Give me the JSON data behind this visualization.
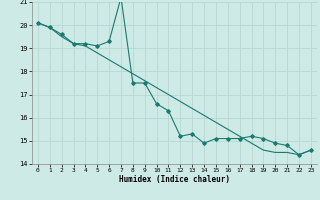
{
  "xlabel": "Humidex (Indice chaleur)",
  "ylabel": "",
  "background_color": "#ceeae6",
  "grid_color": "#b8d8d4",
  "line_color": "#1a7a6e",
  "xlim": [
    -0.5,
    23.5
  ],
  "ylim": [
    14,
    21
  ],
  "xticks": [
    0,
    1,
    2,
    3,
    4,
    5,
    6,
    7,
    8,
    9,
    10,
    11,
    12,
    13,
    14,
    15,
    16,
    17,
    18,
    19,
    20,
    21,
    22,
    23
  ],
  "yticks": [
    14,
    15,
    16,
    17,
    18,
    19,
    20,
    21
  ],
  "series1_x": [
    0,
    1,
    2,
    3,
    4,
    5,
    6,
    7,
    8,
    9,
    10,
    11,
    12,
    13,
    14,
    15,
    16,
    17,
    18,
    19,
    20,
    21,
    22,
    23
  ],
  "series1_y": [
    20.1,
    19.9,
    19.6,
    19.2,
    19.2,
    19.1,
    19.3,
    21.2,
    17.5,
    17.5,
    16.6,
    16.3,
    15.2,
    15.3,
    14.9,
    15.1,
    15.1,
    15.1,
    15.2,
    15.1,
    14.9,
    14.8,
    14.4,
    14.6
  ],
  "series2_x": [
    0,
    1,
    2,
    3,
    4,
    5,
    6,
    7,
    8,
    9,
    10,
    11,
    12,
    13,
    14,
    15,
    16,
    17,
    18,
    19,
    20,
    21,
    22,
    23
  ],
  "series2_y": [
    20.1,
    19.9,
    19.5,
    19.2,
    19.1,
    18.8,
    18.5,
    18.2,
    17.9,
    17.6,
    17.3,
    17.0,
    16.7,
    16.4,
    16.1,
    15.8,
    15.5,
    15.2,
    14.9,
    14.6,
    14.5,
    14.5,
    14.4,
    14.6
  ]
}
